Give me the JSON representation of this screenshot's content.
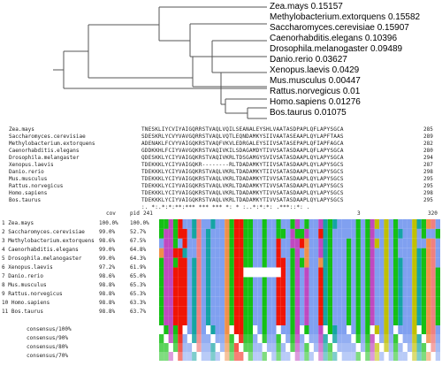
{
  "tree": {
    "leaves": [
      "Zea.mays 0.15157",
      "Methylobacterium.extorquens 0.15582",
      "Saccharomyces.cerevisiae 0.15907",
      "Caenorhabditis.elegans 0.10396",
      "Drosophila.melanogaster 0.09489",
      "Danio.rerio 0.03627",
      "Xenopus.laevis 0.0429",
      "Mus.musculus 0.00447",
      "Rattus.norvegicus 0.01",
      "Homo.sapiens 0.01276",
      "Bos.taurus 0.01075"
    ]
  },
  "clustal": {
    "rows": [
      {
        "name": "Zea.mays",
        "seq": "TNESKLIYCVIYAIGQRRSTVAQLVQILSEANALEYSHLVAATASDPAPLQFLAPYSGCA",
        "num": "285"
      },
      {
        "name": "Saccharomyces.cerevisiae",
        "seq": "SDESKRLYCVYVAVGQRRSTVAQLVQTLEQNDAMKYSIIVAATASEAAPLQYLAPFTAAS",
        "num": "289"
      },
      {
        "name": "Methylobacterium.extorquens",
        "seq": "ADENAKLFCVYVAIGQKRSTVAQFVKVLEDRGALEYSIIVSATASEPAPLQFIAPFAGCA",
        "num": "282"
      },
      {
        "name": "Caenorhabditis.elegans",
        "seq": "GDDKKHLFCIYVAVGQKRSTVAQIVKILSDAGAMDYTIVVSATASDAAPLQFLAPYSGCA",
        "num": "280"
      },
      {
        "name": "Drosophila.melangaster",
        "seq": "QDESKKLYCIYVAIGQKRSTVAQIVKRLTDSGAMGYSVIVSATASDAAPLQYLAPYSGCA",
        "num": "294"
      },
      {
        "name": "Xenopus.laevis",
        "seq": "TDEKKKLYCIYVAIGQKR--------RLTDADAMKYTIIVSATASDAAPLQYLAPYSGCS",
        "num": "287"
      },
      {
        "name": "Danio.rerio",
        "seq": "TDEKKKLYCIYVAIGQKRSTVAQLVKRLTDADAMKYTIIVSATASDAAPLQYLAPYSGCS",
        "num": "298"
      },
      {
        "name": "Mus.musculus",
        "seq": "TDEKKKLYCIYVAIGQKRSTVAQLVKRLTDADAMKYTIVVSATASDAAPLQYLAPYSGCS",
        "num": "295"
      },
      {
        "name": "Rattus.norvegicus",
        "seq": "TDEKKKLYCIYVAIGQKRSTVAQLVKRLTDADAMKYTIVVSATASDAAPLQYLAPYSGCS",
        "num": "295"
      },
      {
        "name": "Homo.sapiens",
        "seq": "TDEKKKLYCIYVAIGQKRSTVAQLVKRLTDADAMKYTIVVSATASDAAPLQYLAPYSGCS",
        "num": "298"
      },
      {
        "name": "Bos.taurus",
        "seq": "TDEKKKLYCIYVAIGQKRSTVAQLVKRLTDADAMKYTIVVSATASDAAPLQYLAPYSGCS",
        "num": "295"
      },
      {
        "name": "",
        "seq": " :.  *:.*:*:**:*** *** ***  *:   *  :..*:*:*: .***::*:  .",
        "num": ""
      }
    ]
  },
  "jalview": {
    "header": {
      "cov": "cov",
      "pid": "pid",
      "start": "241",
      "tick3": "3",
      "end": "320"
    },
    "rows": [
      {
        "n": "1 Zea.mays",
        "c": "100.0%",
        "p": "100.0%"
      },
      {
        "n": "2 Saccharomyces.cerevisiae",
        "c": "99.0%",
        "p": "52.7%"
      },
      {
        "n": "3 Methylobacterium.extorquens",
        "c": "98.6%",
        "p": "67.5%"
      },
      {
        "n": "4 Caenorhabditis.elegans",
        "c": "99.0%",
        "p": "64.8%"
      },
      {
        "n": "5 Drosophila.melanogaster",
        "c": "99.0%",
        "p": "64.3%"
      },
      {
        "n": "6 Xenopus.laevis",
        "c": "97.2%",
        "p": "61.9%"
      },
      {
        "n": "7 Danio.rerio",
        "c": "98.6%",
        "p": "65.0%"
      },
      {
        "n": "8 Mus.musculus",
        "c": "98.8%",
        "p": "65.3%"
      },
      {
        "n": "9 Rattus.norvegicus",
        "c": "98.8%",
        "p": "65.3%"
      },
      {
        "n": "10 Homo.sapiens",
        "c": "98.8%",
        "p": "63.3%"
      },
      {
        "n": "11 Bos.taurus",
        "c": "98.8%",
        "p": "63.7%"
      }
    ],
    "consensus": [
      "consensus/100%",
      "consensus/90%",
      "consensus/80%",
      "consensus/70%"
    ]
  }
}
